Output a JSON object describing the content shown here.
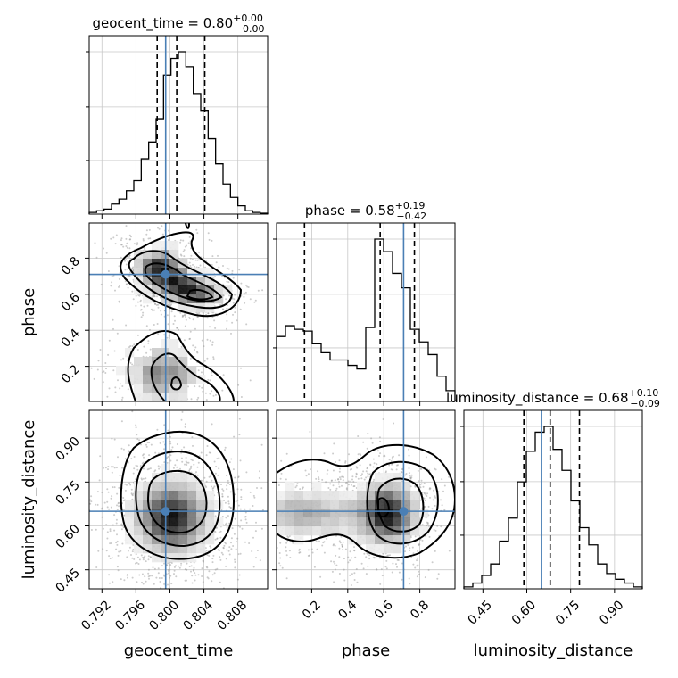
{
  "chart_data": {
    "type": "corner",
    "truth_color": "#4a7fb5",
    "params": [
      "geocent_time",
      "phase",
      "luminosity_distance"
    ],
    "titles": {
      "geocent_time": {
        "prefix": "geocent_time = ",
        "median": "0.80",
        "plus": "+0.00",
        "minus": "−0.00"
      },
      "phase": {
        "prefix": "phase = ",
        "median": "0.58",
        "plus": "+0.19",
        "minus": "−0.42"
      },
      "luminosity_distance": {
        "prefix": "luminosity_distance = ",
        "median": "0.68",
        "plus": "+0.10",
        "minus": "−0.09"
      }
    },
    "axes": {
      "geocent_time": {
        "range": [
          0.7905,
          0.8115
        ],
        "ticks": [
          0.792,
          0.796,
          0.8,
          0.804,
          0.808
        ],
        "tick_labels": [
          "0.792",
          "0.796",
          "0.800",
          "0.804",
          "0.808"
        ],
        "truth": 0.7995,
        "quantiles": [
          0.7985,
          0.8008,
          0.8041
        ]
      },
      "phase": {
        "range": [
          0.005,
          0.995
        ],
        "ticks": [
          0.2,
          0.4,
          0.6,
          0.8
        ],
        "tick_labels": [
          "0.2",
          "0.4",
          "0.6",
          "0.8"
        ],
        "truth": 0.71,
        "quantiles": [
          0.16,
          0.58,
          0.77
        ]
      },
      "luminosity_distance": {
        "range": [
          0.385,
          0.995
        ],
        "ticks": [
          0.45,
          0.6,
          0.75,
          0.9
        ],
        "tick_labels": [
          "0.45",
          "0.60",
          "0.75",
          "0.90"
        ],
        "truth": 0.65,
        "quantiles": [
          0.59,
          0.68,
          0.78
        ]
      }
    },
    "hist": {
      "geocent_time": [
        1,
        2,
        3,
        6,
        9,
        14,
        20,
        33,
        43,
        57,
        83,
        93,
        97,
        88,
        72,
        62,
        45,
        30,
        18,
        10,
        5,
        2,
        1,
        0.5
      ],
      "phase": [
        36,
        42,
        40,
        39,
        32,
        27,
        23,
        23,
        20,
        18,
        41,
        90,
        83,
        71,
        63,
        40,
        33,
        26,
        14,
        6
      ],
      "luminosity_distance": [
        1,
        3,
        7,
        13,
        25,
        37,
        56,
        72,
        82,
        85,
        73,
        62,
        46,
        32,
        23,
        13,
        8,
        5,
        3,
        1
      ]
    }
  }
}
